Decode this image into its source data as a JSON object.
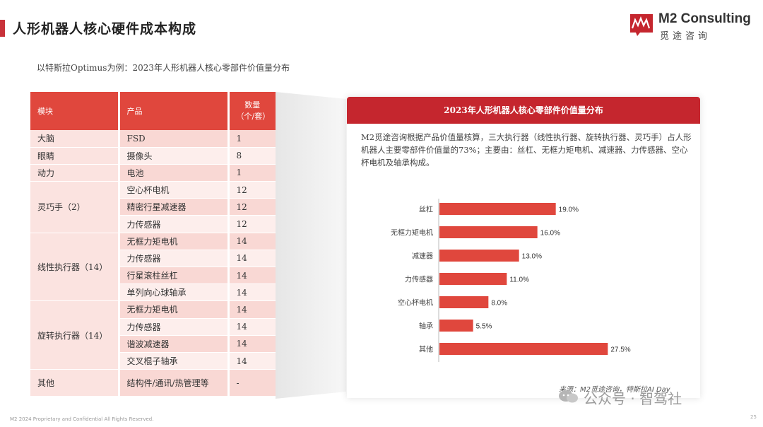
{
  "page": {
    "title": "人形机器人核心硬件成本构成",
    "subtitle": "以特斯拉Optimus为例：2023年人形机器人核心零部件价值量分布",
    "footer": "M2 2024 Proprietary and Confidential All Rights Reserved.",
    "page_number": "25"
  },
  "logo": {
    "name": "M2 Consulting",
    "sub": "觅途咨询"
  },
  "table": {
    "headers": {
      "module": "模块",
      "product": "产品",
      "qty_line1": "数量",
      "qty_line2": "（个/套）"
    },
    "rows": [
      {
        "module": "大脑",
        "product": "FSD",
        "qty": "1"
      },
      {
        "module": "眼睛",
        "product": "摄像头",
        "qty": "8"
      },
      {
        "module": "动力",
        "product": "电池",
        "qty": "1"
      },
      {
        "module": "灵巧手（2）",
        "product": "空心杯电机",
        "qty": "12"
      },
      {
        "product": "精密行星减速器",
        "qty": "12"
      },
      {
        "product": "力传感器",
        "qty": "12"
      },
      {
        "module": "线性执行器（14）",
        "product": "无框力矩电机",
        "qty": "14"
      },
      {
        "product": "力传感器",
        "qty": "14"
      },
      {
        "product": "行星滚柱丝杠",
        "qty": "14"
      },
      {
        "product": "单列向心球轴承",
        "qty": "14"
      },
      {
        "module": "旋转执行器（14）",
        "product": "无框力矩电机",
        "qty": "14"
      },
      {
        "product": "力传感器",
        "qty": "14"
      },
      {
        "product": "谐波减速器",
        "qty": "14"
      },
      {
        "product": "交叉棍子轴承",
        "qty": "14"
      },
      {
        "module": "其他",
        "product": "结构件/通讯/热管理等",
        "qty": "-"
      }
    ]
  },
  "panel": {
    "header": "2023年人形机器人核心零部件价值量分布",
    "description": "M2觅途咨询根据产品价值量核算，三大执行器（线性执行器、旋转执行器、灵巧手）占人形机器人主要零部件价值量的73%；主要由：丝杠、无框力矩电机、减速器、力传感器、空心杯电机及轴承构成。",
    "source": "来源：M2觅途咨询，特斯拉AI Day"
  },
  "chart_data": {
    "type": "bar",
    "orientation": "horizontal",
    "categories": [
      "丝杠",
      "无框力矩电机",
      "减速器",
      "力传感器",
      "空心杯电机",
      "轴承",
      "其他"
    ],
    "values": [
      19.0,
      16.0,
      13.0,
      11.0,
      8.0,
      5.5,
      27.5
    ],
    "value_labels": [
      "19.0%",
      "16.0%",
      "13.0%",
      "11.0%",
      "8.0%",
      "5.5%",
      "27.5%"
    ],
    "bar_color": "#e0473d",
    "xlim": [
      0,
      30
    ],
    "grid": false
  },
  "watermark": {
    "text": "公众号 · 智驾社"
  },
  "colors": {
    "accent": "#c5262e",
    "header_red": "#e0473d",
    "row_pink": "#f9d8d4",
    "row_light": "#fdeeec"
  }
}
